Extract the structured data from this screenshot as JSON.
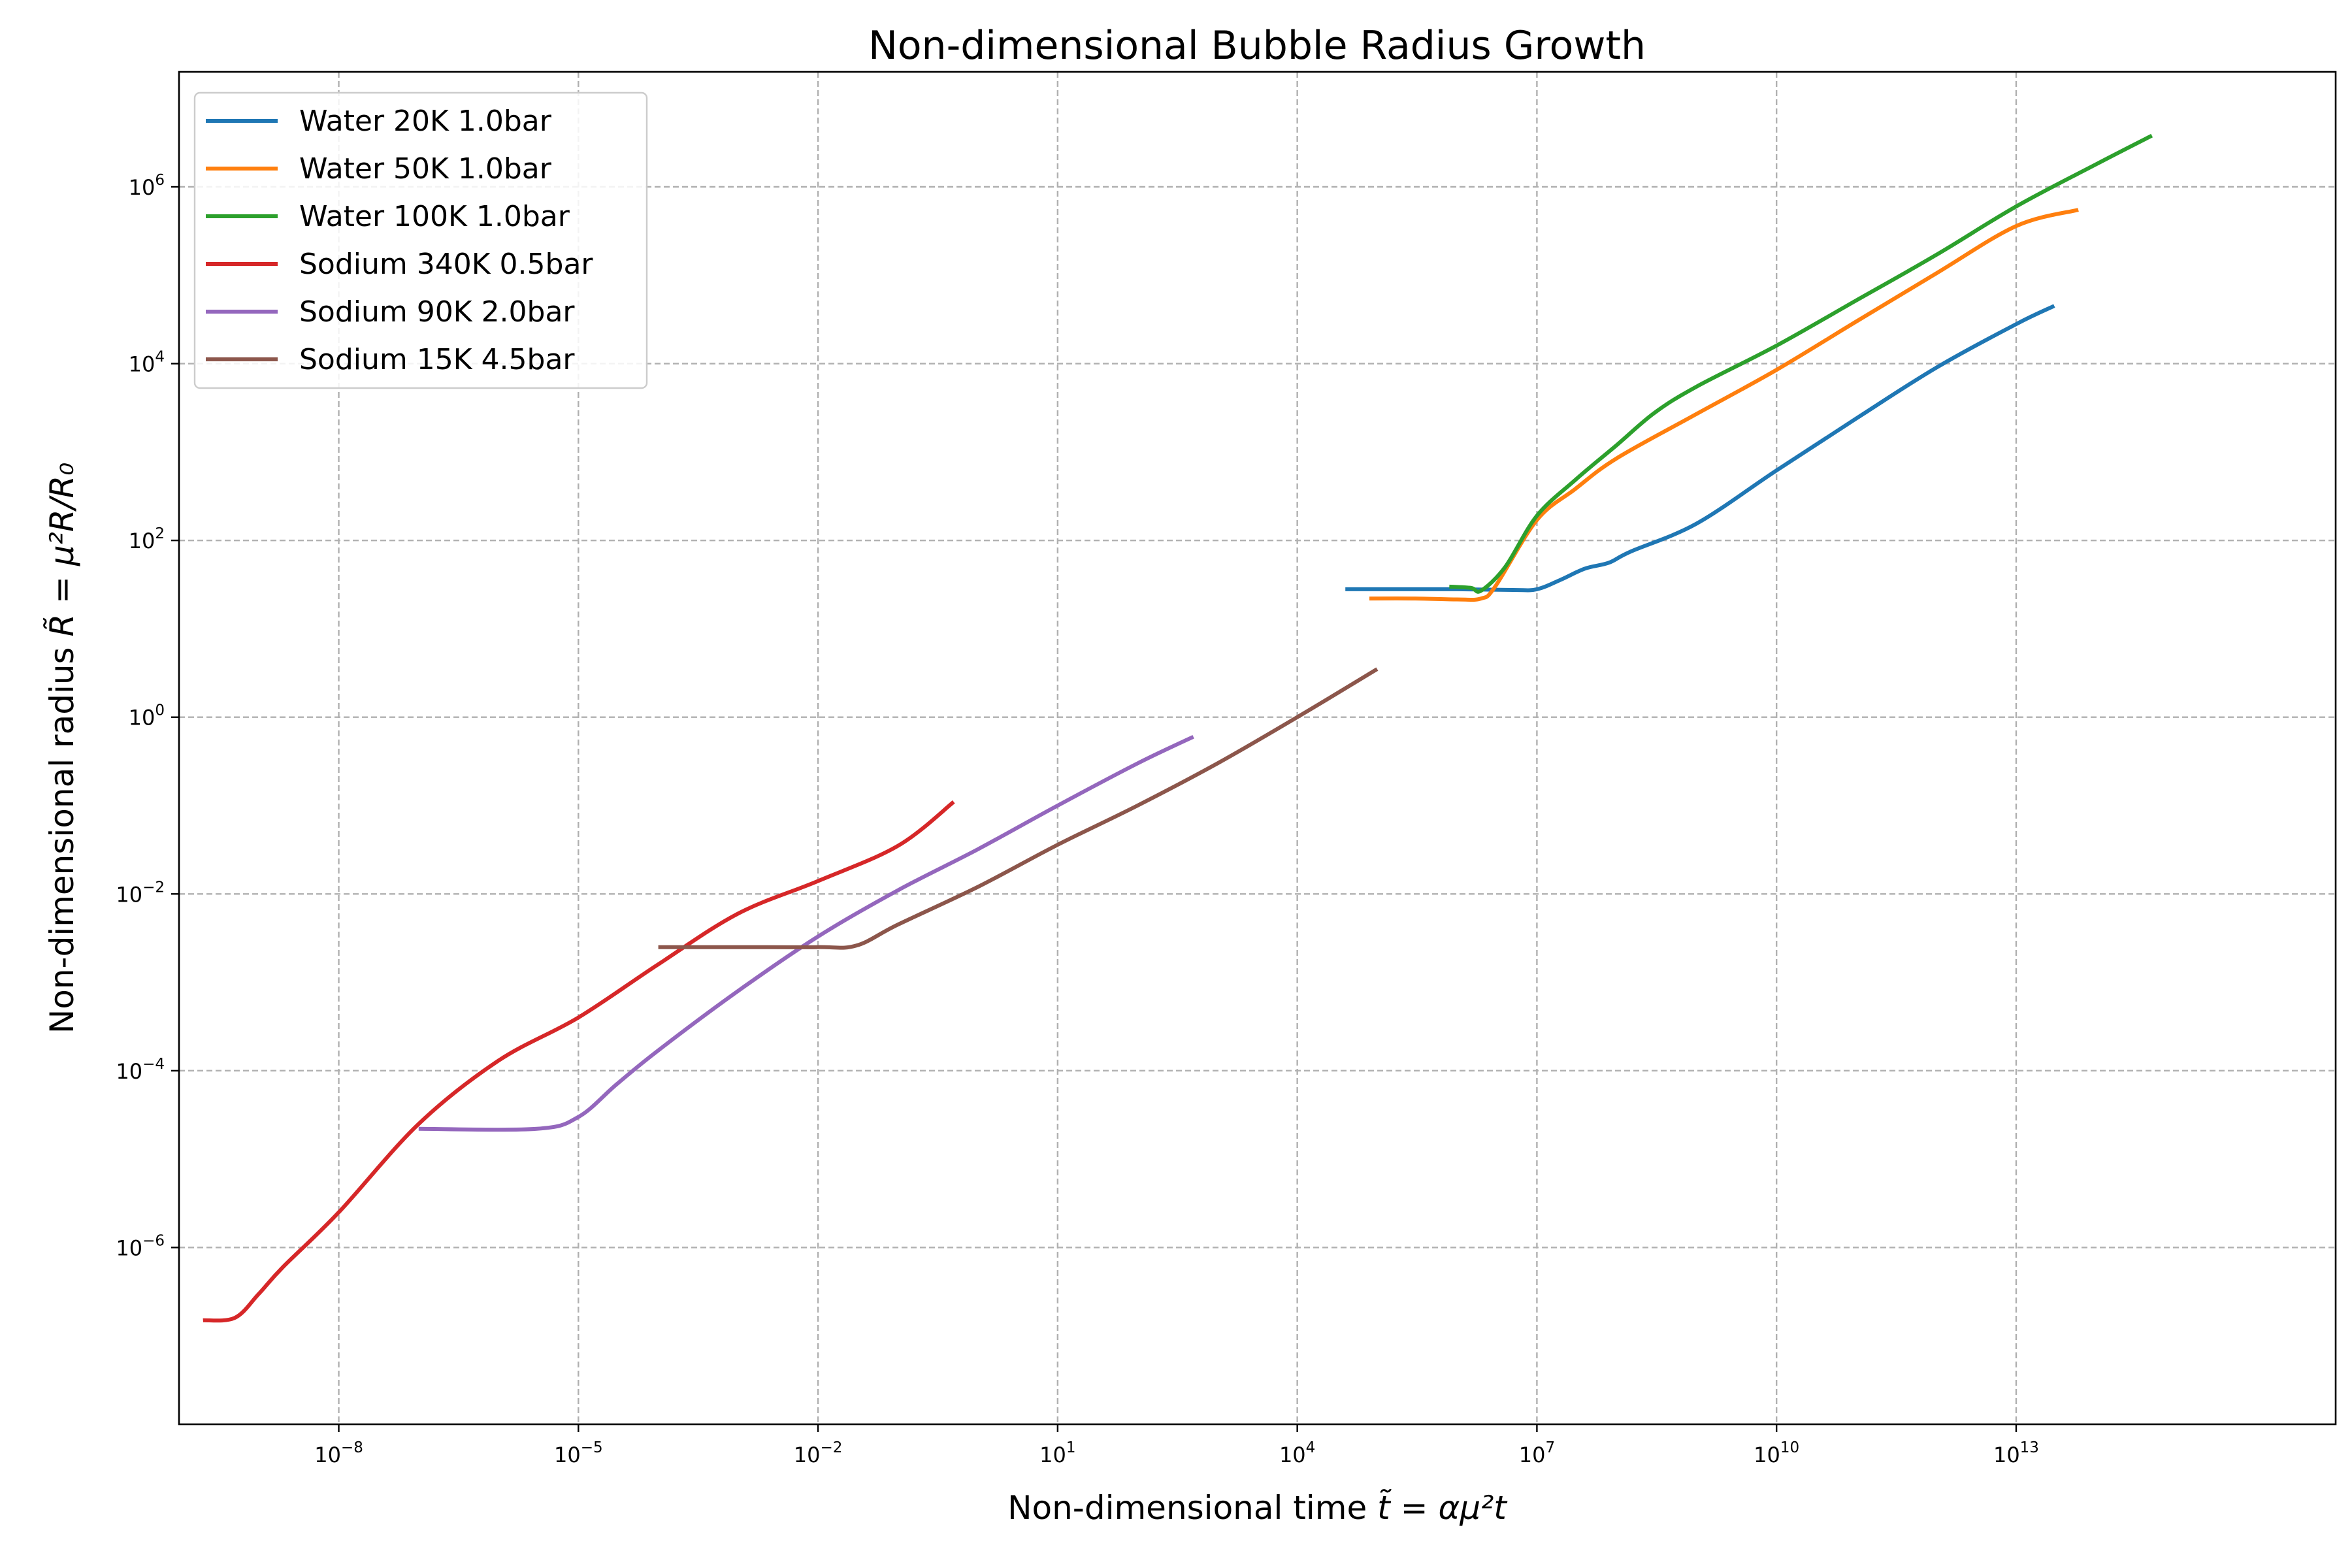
{
  "chart_data": {
    "type": "line",
    "title": "Non-dimensional Bubble Radius Growth",
    "xlabel": "Non-dimensional time",
    "xlabel_math": "t̃ = αμ²t",
    "ylabel": "Non-dimensional radius",
    "ylabel_math": "R̃ = μ²R/R₀",
    "xscale": "log",
    "yscale": "log",
    "xlim": [
      1e-10,
      1e+17
    ],
    "ylim": [
      1e-08,
      20000000.0
    ],
    "xtick_exponents": [
      "-8",
      "-5",
      "-2",
      "1",
      "4",
      "7",
      "10",
      "13"
    ],
    "ytick_exponents": [
      "-6",
      "-4",
      "-2",
      "0",
      "2",
      "4",
      "6"
    ],
    "tick_base": "10",
    "grid": true,
    "legend_position": "upper-left",
    "series": [
      {
        "name": "Water 20K 1.0bar",
        "color": "#1f77b4",
        "points": [
          [
            40000.0,
            28
          ],
          [
            100000.0,
            28
          ],
          [
            1000000.0,
            28
          ],
          [
            5000000.0,
            27.5
          ],
          [
            10000000.0,
            28
          ],
          [
            20000000.0,
            36
          ],
          [
            40000000.0,
            48
          ],
          [
            80000000.0,
            56
          ],
          [
            150000000.0,
            75
          ],
          [
            1000000000.0,
            155
          ],
          [
            10000000000.0,
            620
          ],
          [
            100000000000.0,
            2400
          ],
          [
            1000000000000.0,
            9000
          ],
          [
            10000000000000.0,
            28000
          ],
          [
            30000000000000.0,
            45000
          ]
        ]
      },
      {
        "name": "Water 50K 1.0bar",
        "color": "#ff7f0e",
        "points": [
          [
            80000.0,
            22
          ],
          [
            300000.0,
            22
          ],
          [
            1000000.0,
            21.5
          ],
          [
            2000000.0,
            22
          ],
          [
            3000000.0,
            30
          ],
          [
            10000000.0,
            170
          ],
          [
            30000000.0,
            380
          ],
          [
            100000000.0,
            850
          ],
          [
            1000000000.0,
            2700
          ],
          [
            10000000000.0,
            8500
          ],
          [
            100000000000.0,
            30000
          ],
          [
            1000000000000.0,
            105000
          ],
          [
            10000000000000.0,
            360000
          ],
          [
            60000000000000.0,
            550000
          ]
        ]
      },
      {
        "name": "Water 100K 1.0bar",
        "color": "#2ca02c",
        "points": [
          [
            800000.0,
            30
          ],
          [
            1500000.0,
            29
          ],
          [
            2000000.0,
            27
          ],
          [
            4000000.0,
            50
          ],
          [
            10000000.0,
            190
          ],
          [
            30000000.0,
            480
          ],
          [
            100000000.0,
            1200
          ],
          [
            300000000.0,
            2800
          ],
          [
            1000000000.0,
            5500
          ],
          [
            10000000000.0,
            16000
          ],
          [
            100000000000.0,
            52000
          ],
          [
            1000000000000.0,
            170000
          ],
          [
            10000000000000.0,
            600000
          ],
          [
            100000000000000.0,
            1800000
          ],
          [
            500000000000000.0,
            3800000
          ]
        ]
      },
      {
        "name": "Sodium 340K 0.5bar",
        "color": "#d62728",
        "points": [
          [
            2e-10,
            1.5e-07
          ],
          [
            5e-10,
            1.6e-07
          ],
          [
            1e-09,
            3e-07
          ],
          [
            2e-09,
            6e-07
          ],
          [
            1e-08,
            2.5e-06
          ],
          [
            1e-07,
            2.5e-05
          ],
          [
            1e-06,
            0.00013
          ],
          [
            1e-05,
            0.0004
          ],
          [
            0.0001,
            0.0016
          ],
          [
            0.001,
            0.006
          ],
          [
            0.01,
            0.014
          ],
          [
            0.1,
            0.035
          ],
          [
            0.5,
            0.11
          ]
        ]
      },
      {
        "name": "Sodium 90K 2.0bar",
        "color": "#9467bd",
        "points": [
          [
            1e-07,
            2.2e-05
          ],
          [
            3e-06,
            2.2e-05
          ],
          [
            1e-05,
            3e-05
          ],
          [
            3e-05,
            7e-05
          ],
          [
            0.0001,
            0.00017
          ],
          [
            0.001,
            0.0008
          ],
          [
            0.01,
            0.0033
          ],
          [
            0.1,
            0.011
          ],
          [
            1,
            0.032
          ],
          [
            10,
            0.1
          ],
          [
            100,
            0.3
          ],
          [
            500.0,
            0.6
          ]
        ]
      },
      {
        "name": "Sodium 15K 4.5bar",
        "color": "#8c564b",
        "points": [
          [
            0.0001,
            0.0025
          ],
          [
            0.001,
            0.0025
          ],
          [
            0.01,
            0.0025
          ],
          [
            0.03,
            0.0026
          ],
          [
            0.1,
            0.0045
          ],
          [
            1,
            0.012
          ],
          [
            10,
            0.036
          ],
          [
            100,
            0.1
          ],
          [
            1000.0,
            0.3
          ],
          [
            10000.0,
            1.0
          ],
          [
            100000.0,
            3.5
          ]
        ]
      }
    ]
  }
}
